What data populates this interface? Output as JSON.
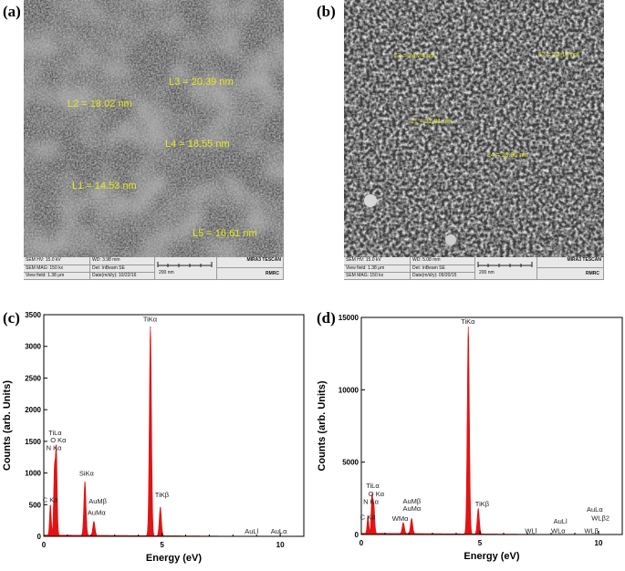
{
  "panels": {
    "a": {
      "label": "(a)"
    },
    "b": {
      "label": "(b)"
    },
    "c": {
      "label": "(c)"
    },
    "d": {
      "label": "(d)"
    }
  },
  "sem_a": {
    "measurements": [
      "L3 = 20.39 nm",
      "L2 = 18.02 nm",
      "L4 = 18.55 nm",
      "L1 = 14.53 nm",
      "L5 = 16.61 nm"
    ],
    "info": {
      "hv": "SEM HV: 15.0 kV",
      "wd": "WD: 3.98 mm",
      "mag": "SEM MAG: 150 kx",
      "det": "Det: InBeam SE",
      "scale": "200 nm",
      "view": "View field: 1.38 μm",
      "date": "Date(m/d/y): 10/22/16",
      "brand": "MIRA3 TESCAN",
      "org": "RMRC"
    }
  },
  "sem_b": {
    "measurements": [
      "L3 = 24.24 nm",
      "L2 = 24.18 nm",
      "L1 = 22.91 nm",
      "L4 = 29.35 nm"
    ],
    "info": {
      "hv": "SEM HV: 15.0 kV",
      "wd": "WD: 5.08 mm",
      "view": "View field: 1.38 μm",
      "det": "Det: InBeam SE",
      "scale": "200 nm",
      "mag": "SEM MAG: 150 kx",
      "date": "Date(m/d/y): 09/20/15",
      "brand": "MIRA3 TESCAN",
      "org": "RMRC"
    }
  },
  "chart_data": [
    {
      "type": "area",
      "ylabel": "Counts (arb. Units)",
      "xlabel": "Energy (eV)",
      "xlim": [
        0,
        11
      ],
      "ylim": [
        0,
        3500
      ],
      "xticks": [
        0,
        5,
        10
      ],
      "yticks": [
        0,
        500,
        1000,
        1500,
        2000,
        2500,
        3000,
        3500
      ],
      "color": "#e01414",
      "peaks": [
        {
          "x": 0.28,
          "y": 480
        },
        {
          "x": 0.45,
          "y": 1020
        },
        {
          "x": 0.53,
          "y": 1350
        },
        {
          "x": 1.74,
          "y": 850
        },
        {
          "x": 2.12,
          "y": 220
        },
        {
          "x": 4.51,
          "y": 3300
        },
        {
          "x": 4.93,
          "y": 450
        }
      ],
      "annotations": [
        {
          "text": "TiLα",
          "x": 0.2,
          "y": 1600
        },
        {
          "text": "O Kα",
          "x": 0.28,
          "y": 1480
        },
        {
          "text": "N Kα",
          "x": 0.1,
          "y": 1360
        },
        {
          "text": "C Kα",
          "x": -0.05,
          "y": 540
        },
        {
          "text": "SiKα",
          "x": 1.5,
          "y": 960
        },
        {
          "text": "AuMβ",
          "x": 1.9,
          "y": 520
        },
        {
          "text": "AuMα",
          "x": 1.85,
          "y": 340
        },
        {
          "text": "TiKα",
          "x": 4.2,
          "y": 3390
        },
        {
          "text": "TiKβ",
          "x": 4.7,
          "y": 620
        },
        {
          "text": "AuLl",
          "x": 8.5,
          "y": 40
        },
        {
          "text": "AuLα",
          "x": 9.6,
          "y": 40
        }
      ]
    },
    {
      "type": "area",
      "ylabel": "Counts (arb. Units)",
      "xlabel": "Energy (eV)",
      "xlim": [
        0,
        11
      ],
      "ylim": [
        0,
        15000
      ],
      "xticks": [
        0,
        5,
        10
      ],
      "yticks": [
        0,
        5000,
        10000,
        15000
      ],
      "color": "#e01414",
      "peaks": [
        {
          "x": 0.28,
          "y": 1200
        },
        {
          "x": 0.45,
          "y": 2600
        },
        {
          "x": 0.53,
          "y": 1900
        },
        {
          "x": 1.77,
          "y": 750
        },
        {
          "x": 2.12,
          "y": 1050
        },
        {
          "x": 4.51,
          "y": 14300
        },
        {
          "x": 4.93,
          "y": 1750
        }
      ],
      "annotations": [
        {
          "text": "TiLα",
          "x": 0.2,
          "y": 3200
        },
        {
          "text": "O Kα",
          "x": 0.3,
          "y": 2650
        },
        {
          "text": "N Kα",
          "x": 0.08,
          "y": 2100
        },
        {
          "text": "C Kα",
          "x": -0.05,
          "y": 1050
        },
        {
          "text": "AuMβ",
          "x": 1.75,
          "y": 2150
        },
        {
          "text": "AuMα",
          "x": 1.75,
          "y": 1650
        },
        {
          "text": "WMα",
          "x": 1.3,
          "y": 950
        },
        {
          "text": "TiKα",
          "x": 4.2,
          "y": 14550
        },
        {
          "text": "TiKβ",
          "x": 4.8,
          "y": 1950
        },
        {
          "text": "WLl",
          "x": 6.9,
          "y": 100
        },
        {
          "text": "AuLl",
          "x": 8.1,
          "y": 760
        },
        {
          "text": "WLα",
          "x": 8.0,
          "y": 100
        },
        {
          "text": "AuLα",
          "x": 9.5,
          "y": 1580
        },
        {
          "text": "WLβ2",
          "x": 9.7,
          "y": 970
        },
        {
          "text": "WLβ",
          "x": 9.4,
          "y": 100
        }
      ]
    }
  ]
}
